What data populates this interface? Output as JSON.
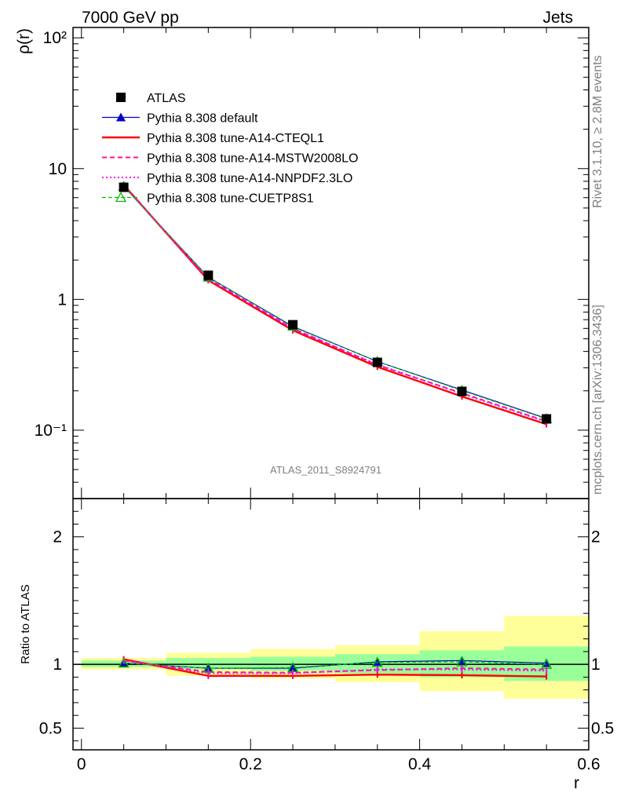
{
  "header": {
    "left": "7000 GeV pp",
    "right": "Jets",
    "watermark": "ATLAS_2011_S8924791"
  },
  "sidebar": {
    "rivet": "Rivet 3.1.10, ≥ 2.8M events",
    "source": "mcplots.cern.ch [arXiv:1306.3436]"
  },
  "colors": {
    "atlas": "#000000",
    "default": "#0000cc",
    "cteql1": "#ff0000",
    "mstw": "#ff1493",
    "nnpdf": "#ff00ff",
    "cuetp": "#00bb00",
    "band_stat": "#99ff99",
    "band_total": "#ffff99"
  },
  "chart_data": [
    {
      "type": "line",
      "ylabel": "ρ(r)",
      "xlabel": "r",
      "yscale": "log",
      "xlim": [
        -0.01,
        0.6
      ],
      "ylim": [
        0.03,
        120
      ],
      "ytick_labels": [
        "10⁻¹",
        "1",
        "10",
        "10²"
      ],
      "x": [
        0.05,
        0.15,
        0.25,
        0.35,
        0.45,
        0.55
      ],
      "legend": "top-left",
      "series": [
        {
          "name": "ATLAS",
          "marker": "square",
          "values": [
            7.2,
            1.53,
            0.64,
            0.33,
            0.198,
            0.122
          ]
        },
        {
          "name": "Pythia 8.308 default",
          "marker": "triangle",
          "values": [
            7.3,
            1.48,
            0.62,
            0.335,
            0.203,
            0.123
          ]
        },
        {
          "name": "Pythia 8.308 tune-A14-CTEQL1",
          "marker": "none",
          "values": [
            7.5,
            1.4,
            0.58,
            0.305,
            0.181,
            0.111
          ]
        },
        {
          "name": "Pythia 8.308 tune-A14-MSTW2008LO",
          "marker": "none",
          "values": [
            7.4,
            1.44,
            0.6,
            0.315,
            0.192,
            0.117
          ]
        },
        {
          "name": "Pythia 8.308 tune-A14-NNPDF2.3LO",
          "marker": "none",
          "values": [
            7.4,
            1.43,
            0.595,
            0.318,
            0.19,
            0.116
          ]
        },
        {
          "name": "Pythia 8.308 tune-CUETP8S1",
          "marker": "open-triangle",
          "values": [
            7.3,
            1.48,
            0.625,
            0.335,
            0.201,
            0.122
          ]
        }
      ]
    },
    {
      "type": "line",
      "ylabel": "Ratio to ATLAS",
      "xlabel": "r",
      "xlim": [
        -0.01,
        0.6
      ],
      "ylim": [
        0.33,
        2.3
      ],
      "ytick_labels": [
        "0.5",
        "1",
        "2"
      ],
      "xtick_labels": [
        "0",
        "0.2",
        "0.4",
        "0.6"
      ],
      "bands": {
        "bins": [
          [
            0.0,
            0.1
          ],
          [
            0.1,
            0.2
          ],
          [
            0.2,
            0.3
          ],
          [
            0.3,
            0.4
          ],
          [
            0.4,
            0.5
          ],
          [
            0.5,
            0.6
          ]
        ],
        "stat": [
          [
            0.98,
            1.03
          ],
          [
            0.96,
            1.05
          ],
          [
            0.95,
            1.06
          ],
          [
            0.93,
            1.08
          ],
          [
            0.9,
            1.11
          ],
          [
            0.87,
            1.14
          ]
        ],
        "total": [
          [
            0.96,
            1.05
          ],
          [
            0.91,
            1.09
          ],
          [
            0.89,
            1.12
          ],
          [
            0.86,
            1.15
          ],
          [
            0.79,
            1.26
          ],
          [
            0.73,
            1.38
          ]
        ]
      },
      "series": [
        {
          "name": "Pythia 8.308 default",
          "values": [
            1.01,
            0.97,
            0.97,
            1.02,
            1.03,
            1.01
          ]
        },
        {
          "name": "Pythia 8.308 tune-A14-CTEQL1",
          "values": [
            1.04,
            0.91,
            0.91,
            0.92,
            0.915,
            0.905
          ]
        },
        {
          "name": "Pythia 8.308 tune-A14-MSTW2008LO",
          "values": [
            1.03,
            0.94,
            0.935,
            0.955,
            0.97,
            0.96
          ]
        },
        {
          "name": "Pythia 8.308 tune-A14-NNPDF2.3LO",
          "values": [
            1.03,
            0.93,
            0.93,
            0.96,
            0.96,
            0.95
          ]
        },
        {
          "name": "Pythia 8.308 tune-CUETP8S1",
          "values": [
            1.01,
            0.97,
            0.975,
            1.015,
            1.02,
            1.0
          ]
        }
      ]
    }
  ]
}
